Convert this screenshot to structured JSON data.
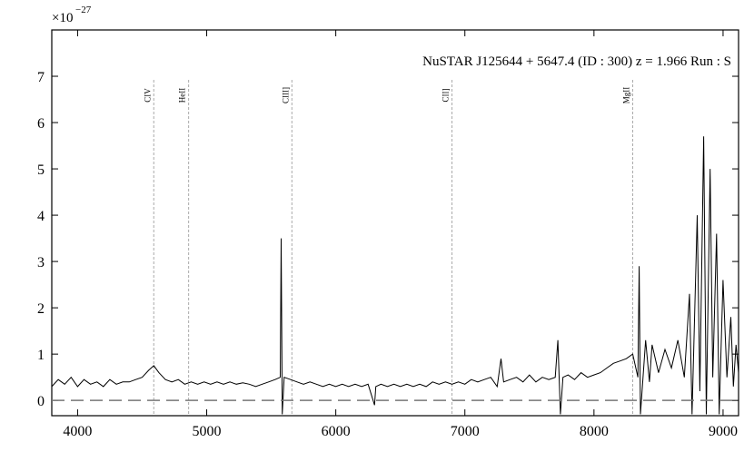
{
  "chart_data": {
    "type": "line",
    "title": "NuSTAR J125644 + 5647.4 (ID : 300)   z = 1.966   Run : S",
    "scale_label": {
      "base": "×10",
      "exponent": "−27"
    },
    "x": [
      3800,
      3850,
      3900,
      3950,
      4000,
      4050,
      4100,
      4150,
      4200,
      4250,
      4300,
      4350,
      4400,
      4450,
      4500,
      4550,
      4590,
      4630,
      4680,
      4730,
      4780,
      4830,
      4880,
      4930,
      4980,
      5030,
      5080,
      5130,
      5180,
      5230,
      5280,
      5330,
      5380,
      5430,
      5480,
      5530,
      5570,
      5577,
      5585,
      5600,
      5650,
      5700,
      5750,
      5800,
      5850,
      5900,
      5950,
      6000,
      6050,
      6100,
      6150,
      6200,
      6250,
      6300,
      6310,
      6350,
      6400,
      6450,
      6500,
      6550,
      6600,
      6650,
      6700,
      6750,
      6800,
      6850,
      6900,
      6950,
      7000,
      7050,
      7100,
      7150,
      7200,
      7250,
      7280,
      7300,
      7350,
      7400,
      7450,
      7500,
      7550,
      7600,
      7650,
      7700,
      7720,
      7740,
      7760,
      7800,
      7850,
      7900,
      7950,
      8000,
      8050,
      8100,
      8150,
      8200,
      8250,
      8300,
      8340,
      8350,
      8360,
      8400,
      8430,
      8450,
      8500,
      8550,
      8600,
      8650,
      8700,
      8740,
      8760,
      8800,
      8820,
      8850,
      8870,
      8900,
      8920,
      8950,
      8970,
      9000,
      9030,
      9060,
      9080,
      9100,
      9120
    ],
    "values": [
      0.3,
      0.45,
      0.35,
      0.5,
      0.3,
      0.45,
      0.35,
      0.4,
      0.3,
      0.45,
      0.35,
      0.4,
      0.4,
      0.45,
      0.5,
      0.65,
      0.75,
      0.6,
      0.45,
      0.4,
      0.45,
      0.35,
      0.4,
      0.35,
      0.4,
      0.35,
      0.4,
      0.35,
      0.4,
      0.35,
      0.38,
      0.35,
      0.3,
      0.35,
      0.4,
      0.45,
      0.5,
      3.5,
      -0.3,
      0.5,
      0.45,
      0.4,
      0.35,
      0.4,
      0.35,
      0.3,
      0.35,
      0.3,
      0.35,
      0.3,
      0.35,
      0.3,
      0.35,
      -0.1,
      0.3,
      0.35,
      0.3,
      0.35,
      0.3,
      0.35,
      0.3,
      0.35,
      0.3,
      0.4,
      0.35,
      0.4,
      0.35,
      0.4,
      0.35,
      0.45,
      0.4,
      0.45,
      0.5,
      0.3,
      0.9,
      0.4,
      0.45,
      0.5,
      0.4,
      0.55,
      0.4,
      0.5,
      0.45,
      0.5,
      1.3,
      -0.3,
      0.5,
      0.55,
      0.45,
      0.6,
      0.5,
      0.55,
      0.6,
      0.7,
      0.8,
      0.85,
      0.9,
      1.0,
      0.5,
      2.9,
      -0.3,
      1.3,
      0.4,
      1.2,
      0.6,
      1.1,
      0.7,
      1.3,
      0.5,
      2.3,
      -0.3,
      4.0,
      0.2,
      5.7,
      -0.3,
      5.0,
      0.5,
      3.6,
      -0.3,
      2.6,
      0.5,
      1.8,
      0.3,
      1.2,
      0.6
    ],
    "color": "#000000",
    "lines": [
      {
        "label": "CIV",
        "x": 4590
      },
      {
        "label": "HeII",
        "x": 4860
      },
      {
        "label": "CIII]",
        "x": 5660
      },
      {
        "label": "CII]",
        "x": 6900
      },
      {
        "label": "MgII",
        "x": 8300
      }
    ],
    "hline": 0,
    "xlim": [
      3800,
      9120
    ],
    "ylim": [
      -0.33,
      8.0
    ],
    "xticks": [
      4000,
      5000,
      6000,
      7000,
      8000,
      9000
    ],
    "yticks": [
      0,
      1,
      2,
      3,
      4,
      5,
      6,
      7
    ]
  }
}
